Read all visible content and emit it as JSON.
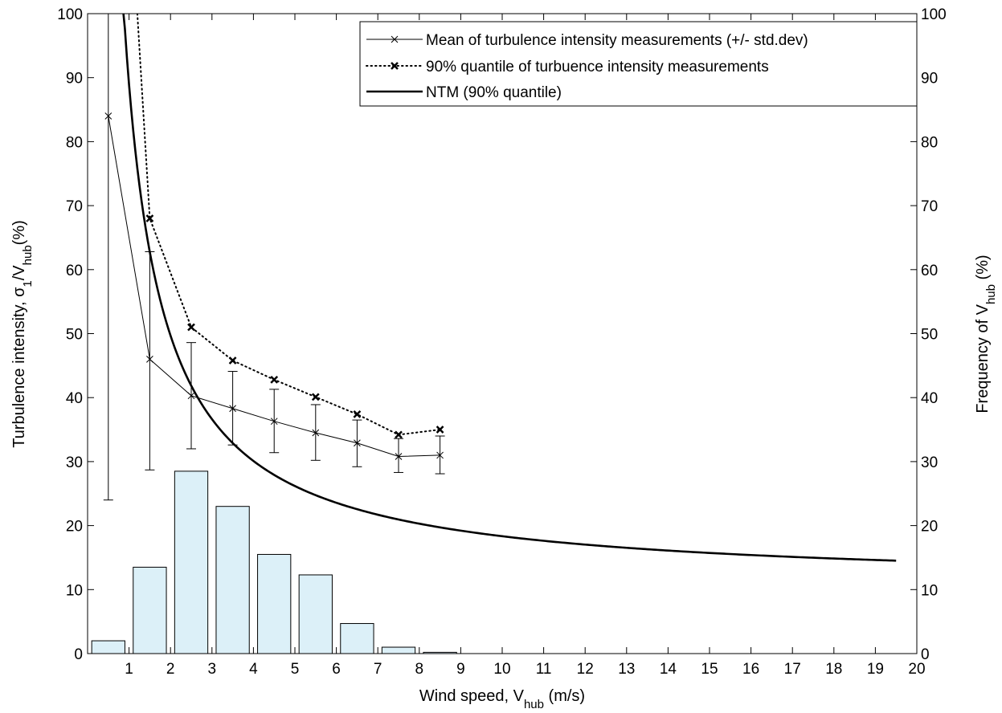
{
  "chart_data": {
    "type": "line",
    "xlabel": {
      "main": "Wind speed, V",
      "sub": "hub",
      "unit": " (m/s)"
    },
    "ylabel_left": {
      "main": "Turbulence intensity, σ",
      "sub1": "1",
      "mid": "/V",
      "sub2": "hub",
      "unit": "(%)"
    },
    "ylabel_right": {
      "main": "Frequency of V",
      "sub": "hub",
      "unit": " (%)"
    },
    "xlim": [
      0,
      20
    ],
    "ylim_left": [
      0,
      100
    ],
    "ylim_right": [
      0,
      100
    ],
    "x_ticks": [
      1,
      2,
      3,
      4,
      5,
      6,
      7,
      8,
      9,
      10,
      11,
      12,
      13,
      14,
      15,
      16,
      17,
      18,
      19,
      20
    ],
    "y_ticks_left": [
      0,
      10,
      20,
      30,
      40,
      50,
      60,
      70,
      80,
      90,
      100
    ],
    "y_ticks_right": [
      0,
      10,
      20,
      30,
      40,
      50,
      60,
      70,
      80,
      90,
      100
    ],
    "grid": false,
    "legend_position": "top-right",
    "legend": [
      "Mean of turbulence intensity measurements (+/- std.dev)",
      "90% quantile of turbuence intensity measurements",
      "NTM (90% quantile)"
    ],
    "histogram": {
      "axis": "right",
      "bin_width": 0.8,
      "fill": "#dcf0f8",
      "x": [
        0.5,
        1.5,
        2.5,
        3.5,
        4.5,
        5.5,
        6.5,
        7.5,
        8.5
      ],
      "values": [
        2.0,
        13.5,
        28.5,
        23.0,
        15.5,
        12.3,
        4.7,
        1.0,
        0.2
      ]
    },
    "series": [
      {
        "name": "Mean of turbulence intensity measurements (+/- std.dev)",
        "style": "thin-x",
        "x": [
          0.5,
          1.5,
          2.5,
          3.5,
          4.5,
          5.5,
          6.5,
          7.5,
          8.5
        ],
        "y": [
          84,
          46,
          40.3,
          38.3,
          36.3,
          34.5,
          32.9,
          30.8,
          31.0
        ],
        "err_low": [
          24,
          28.7,
          32.0,
          32.6,
          31.4,
          30.2,
          29.2,
          28.3,
          28.1
        ],
        "err_high": [
          100,
          62.8,
          48.6,
          44.1,
          41.3,
          38.9,
          36.5,
          33.6,
          34.0
        ]
      },
      {
        "name": "90% quantile of turbuence intensity measurements",
        "style": "dotted-x",
        "x": [
          1.2,
          1.5,
          2.5,
          3.5,
          4.5,
          5.5,
          6.5,
          7.5,
          8.5
        ],
        "y": [
          100,
          68,
          51,
          45.8,
          42.8,
          40.1,
          37.4,
          34.2,
          35.0
        ]
      },
      {
        "name": "NTM (90% quantile)",
        "style": "thick",
        "formula": "0.14*(0.75*V+5.6)/V*100",
        "x_range": [
          0.5,
          19.5
        ]
      }
    ]
  }
}
